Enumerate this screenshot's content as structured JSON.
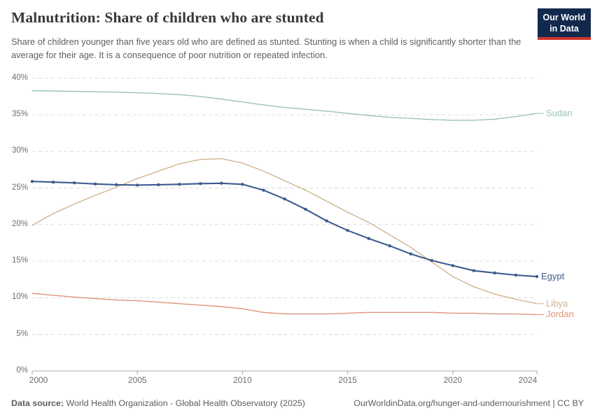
{
  "header": {
    "title": "Malnutrition: Share of children who are stunted",
    "subtitle": "Share of children younger than five years old who are defined as stunted. Stunting is when a child is significantly shorter than the average for their age. It is a consequence of poor nutrition or repeated infection.",
    "logo": {
      "line1": "Our World",
      "line2": "in Data",
      "bg_color": "#12294d",
      "accent_color": "#d0342a"
    }
  },
  "chart_data": {
    "type": "line",
    "title": "Malnutrition: Share of children who are stunted",
    "x": [
      2000,
      2001,
      2002,
      2003,
      2004,
      2005,
      2006,
      2007,
      2008,
      2009,
      2010,
      2011,
      2012,
      2013,
      2014,
      2015,
      2016,
      2017,
      2018,
      2019,
      2020,
      2021,
      2022,
      2023,
      2024
    ],
    "x_ticks": [
      2000,
      2005,
      2010,
      2015,
      2020,
      2024
    ],
    "y_ticks": [
      0,
      5,
      10,
      15,
      20,
      25,
      30,
      35,
      40
    ],
    "y_tick_suffix": "%",
    "ylim": [
      0,
      40
    ],
    "grid": "horizontal-dashed",
    "legend_position": "end-of-line labels",
    "series": [
      {
        "name": "Sudan",
        "color": "#9ac4b6",
        "marker": false,
        "values": [
          38.3,
          38.25,
          38.2,
          38.15,
          38.1,
          38.0,
          37.9,
          37.75,
          37.5,
          37.15,
          36.75,
          36.35,
          36.0,
          35.75,
          35.5,
          35.2,
          34.9,
          34.65,
          34.5,
          34.35,
          34.25,
          34.25,
          34.4,
          34.75,
          35.2
        ]
      },
      {
        "name": "Libya",
        "color": "#d2b28f",
        "marker": false,
        "values": [
          19.9,
          21.5,
          22.8,
          24.0,
          25.1,
          26.3,
          27.3,
          28.3,
          28.9,
          29.0,
          28.4,
          27.3,
          26.0,
          24.7,
          23.2,
          21.7,
          20.3,
          18.6,
          16.9,
          14.9,
          12.9,
          11.5,
          10.5,
          9.8,
          9.2
        ]
      },
      {
        "name": "Jordan",
        "color": "#e0937b",
        "marker": false,
        "values": [
          10.6,
          10.35,
          10.1,
          9.9,
          9.7,
          9.6,
          9.4,
          9.2,
          9.0,
          8.8,
          8.5,
          8.0,
          7.8,
          7.8,
          7.8,
          7.9,
          8.0,
          8.0,
          8.0,
          8.0,
          7.9,
          7.9,
          7.8,
          7.8,
          7.7
        ]
      },
      {
        "name": "Egypt",
        "color": "#3d5c8f",
        "marker": true,
        "values": [
          25.9,
          25.8,
          25.7,
          25.55,
          25.45,
          25.4,
          25.45,
          25.5,
          25.6,
          25.65,
          25.5,
          24.7,
          23.5,
          22.1,
          20.5,
          19.2,
          18.1,
          17.1,
          16.0,
          15.1,
          14.4,
          13.7,
          13.4,
          13.1,
          12.9
        ]
      }
    ]
  },
  "footer": {
    "source_label": "Data source:",
    "source_text": " World Health Organization - Global Health Observatory (2025)",
    "credit": "OurWorldinData.org/hunger-and-undernourishment | CC BY"
  }
}
